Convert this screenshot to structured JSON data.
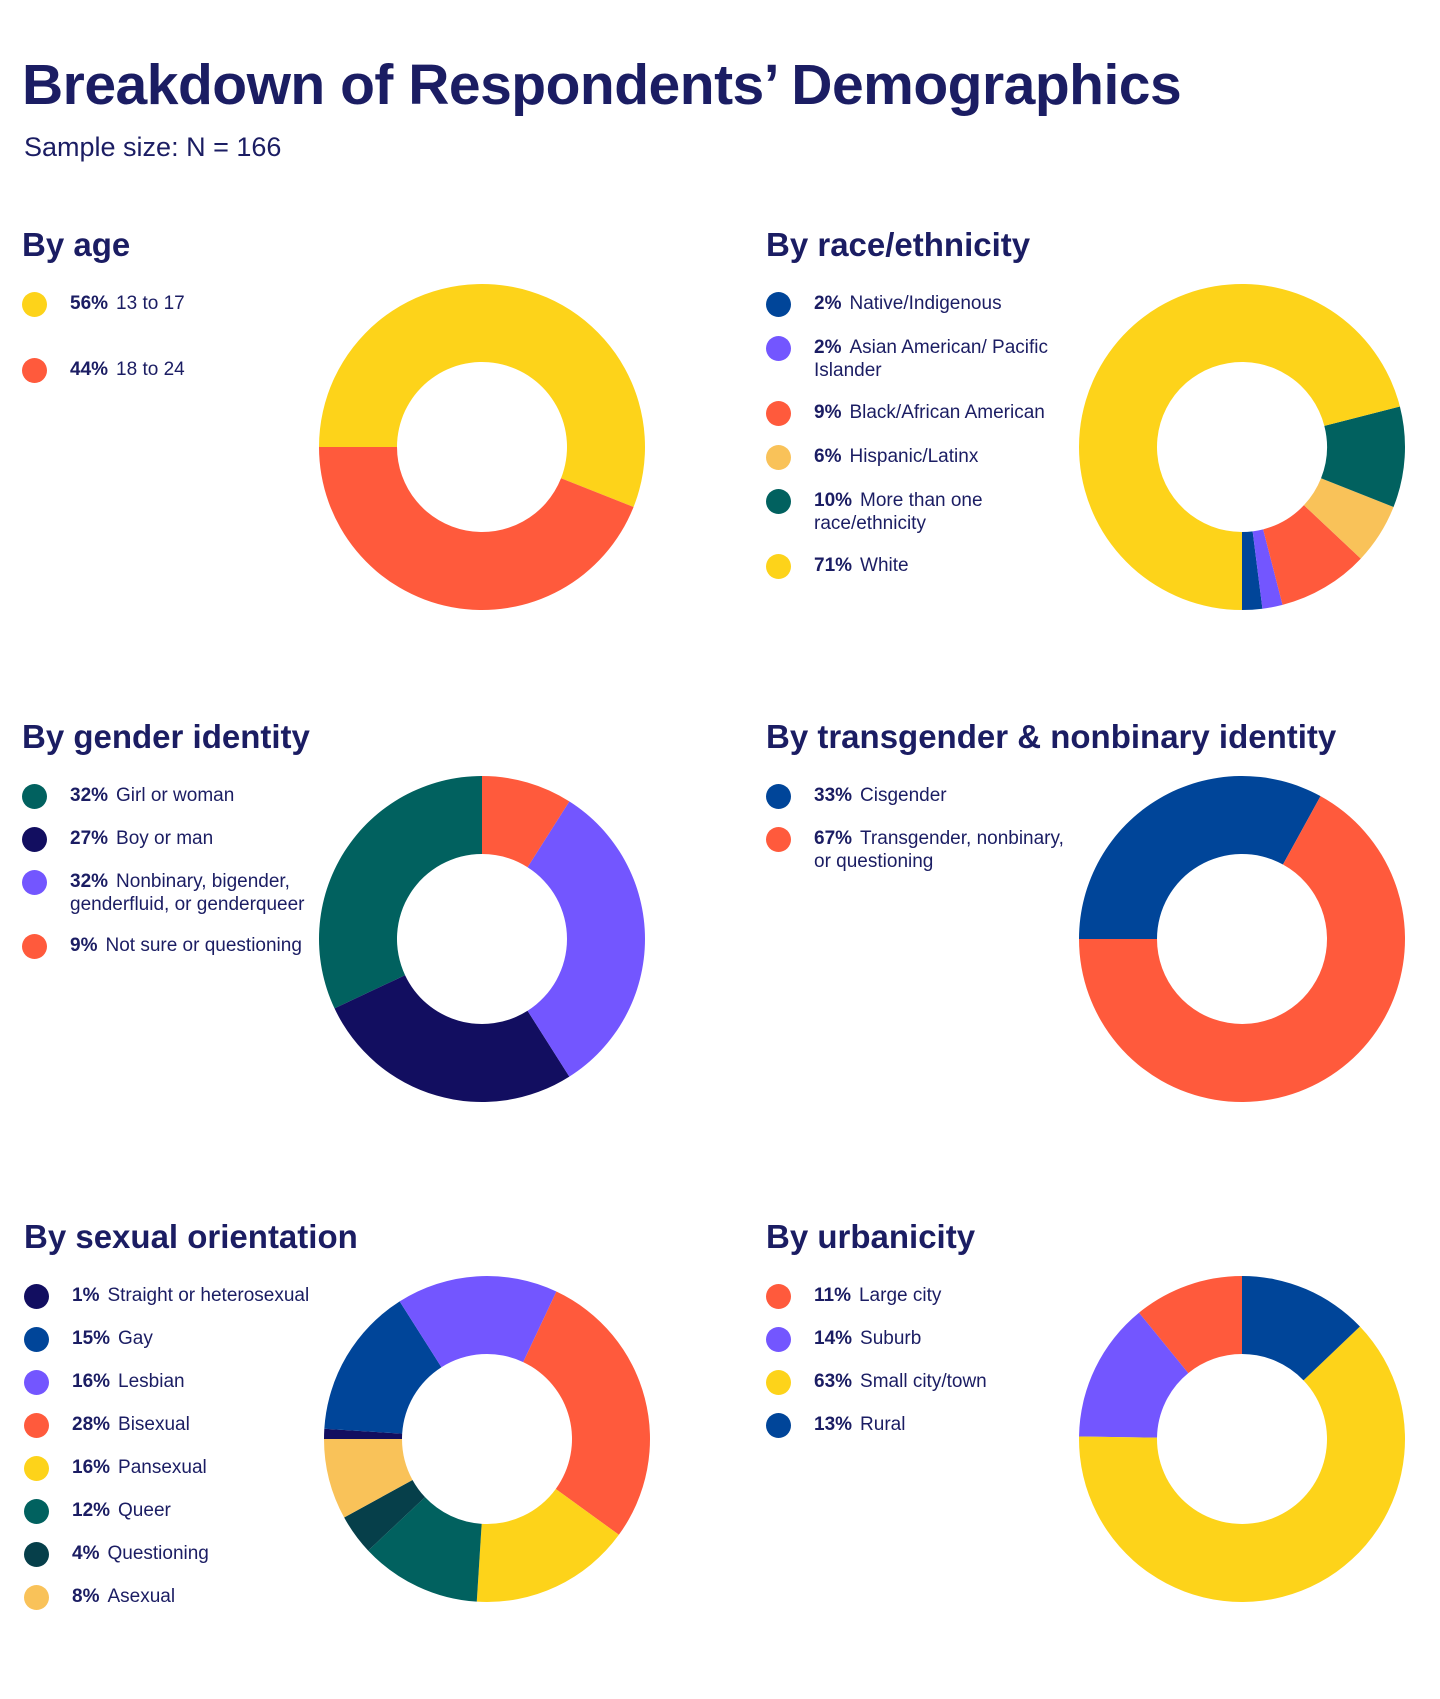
{
  "title": "Breakdown of Respondents’ Demographics",
  "subtitle": "Sample size: N = 166",
  "colors": {
    "yellow": "#fdd31a",
    "orange": "#ff5a3c",
    "navy_blue": "#004599",
    "violet": "#7356ff",
    "light_orange": "#f9c259",
    "teal": "#01615f",
    "dark_navy": "#120e60",
    "dark_teal": "#063f4a"
  },
  "chart_data": [
    {
      "id": "age",
      "type": "pie",
      "title": "By age",
      "start_deg": 180,
      "direction": "cw",
      "legend_gap": 41,
      "slices": [
        {
          "label": "13 to 17",
          "pct_label": "56%",
          "value": 56,
          "color": "#fdd31a"
        },
        {
          "label": "18 to 24",
          "pct_label": "44%",
          "value": 44,
          "color": "#ff5a3c"
        }
      ]
    },
    {
      "id": "race",
      "type": "pie",
      "title": "By race/ethnicity",
      "start_deg": 90,
      "direction": "ccw",
      "legend_gap": 19,
      "slices": [
        {
          "label": "Native/Indigenous",
          "pct_label": "2%",
          "value": 2,
          "color": "#004599"
        },
        {
          "label": "Asian American/ Pacific Islander",
          "pct_label": "2%",
          "value": 2,
          "color": "#7356ff"
        },
        {
          "label": "Black/African American",
          "pct_label": "9%",
          "value": 9,
          "color": "#ff5a3c"
        },
        {
          "label": "Hispanic/Latinx",
          "pct_label": "6%",
          "value": 6,
          "color": "#f9c259"
        },
        {
          "label": "More than one race/ethnicity",
          "pct_label": "10%",
          "value": 10,
          "color": "#01615f"
        },
        {
          "label": "White",
          "pct_label": "71%",
          "value": 71,
          "color": "#fdd31a"
        }
      ]
    },
    {
      "id": "gender",
      "type": "pie",
      "title": "By gender identity",
      "start_deg": -90,
      "direction": "ccw",
      "legend_gap": 18,
      "slices": [
        {
          "label": "Girl or woman",
          "pct_label": "32%",
          "value": 32,
          "color": "#01615f"
        },
        {
          "label": "Boy or man",
          "pct_label": "27%",
          "value": 27,
          "color": "#120e60"
        },
        {
          "label": "Nonbinary, bigender, genderfluid, or genderqueer",
          "pct_label": "32%",
          "value": 32,
          "color": "#7356ff"
        },
        {
          "label": "Not sure or questioning",
          "pct_label": "9%",
          "value": 9,
          "color": "#ff5a3c"
        }
      ]
    },
    {
      "id": "trans",
      "type": "pie",
      "title": "By transgender & nonbinary identity",
      "start_deg": 180,
      "direction": "cw",
      "legend_gap": 18,
      "slices": [
        {
          "label": "Cisgender",
          "pct_label": "33%",
          "value": 33,
          "color": "#004599"
        },
        {
          "label": "Transgender, nonbinary, or questioning",
          "pct_label": "67%",
          "value": 67,
          "color": "#ff5a3c"
        }
      ]
    },
    {
      "id": "sexual",
      "type": "pie",
      "title": "By sexual orientation",
      "start_deg": 180,
      "direction": "cw",
      "legend_gap": 18,
      "slices": [
        {
          "label": "Straight or heterosexual",
          "pct_label": "1%",
          "value": 1,
          "color": "#120e60"
        },
        {
          "label": "Gay",
          "pct_label": "15%",
          "value": 15,
          "color": "#004599"
        },
        {
          "label": "Lesbian",
          "pct_label": "16%",
          "value": 16,
          "color": "#7356ff"
        },
        {
          "label": "Bisexual",
          "pct_label": "28%",
          "value": 28,
          "color": "#ff5a3c"
        },
        {
          "label": "Pansexual",
          "pct_label": "16%",
          "value": 16,
          "color": "#fdd31a"
        },
        {
          "label": "Queer",
          "pct_label": "12%",
          "value": 12,
          "color": "#01615f"
        },
        {
          "label": "Questioning",
          "pct_label": "4%",
          "value": 4,
          "color": "#063f4a"
        },
        {
          "label": "Asexual",
          "pct_label": "8%",
          "value": 8,
          "color": "#f9c259"
        }
      ]
    },
    {
      "id": "urban",
      "type": "pie",
      "title": "By urbanicity",
      "start_deg": -90,
      "direction": "ccw",
      "legend_gap": 18,
      "slices": [
        {
          "label": "Large city",
          "pct_label": "11%",
          "value": 11,
          "color": "#ff5a3c"
        },
        {
          "label": "Suburb",
          "pct_label": "14%",
          "value": 14,
          "color": "#7356ff"
        },
        {
          "label": "Small city/town",
          "pct_label": "63%",
          "value": 63,
          "color": "#fdd31a"
        },
        {
          "label": "Rural",
          "pct_label": "13%",
          "value": 13,
          "color": "#004599"
        }
      ]
    }
  ]
}
